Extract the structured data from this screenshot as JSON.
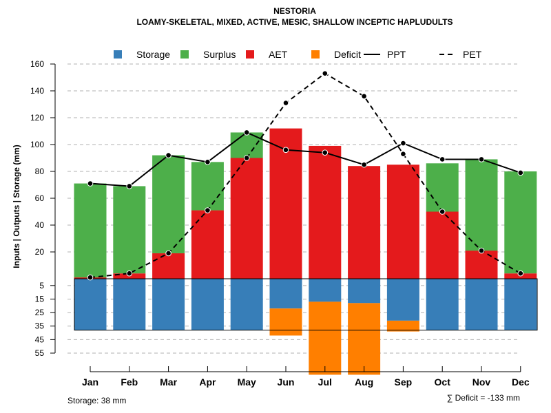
{
  "chart_data": {
    "type": "bar",
    "title": "NESTORIA",
    "subtitle": "LOAMY-SKELETAL, MIXED, ACTIVE, MESIC, SHALLOW INCEPTIC HAPLUDULTS",
    "ylabel": "Inputs | Outputs | Storage    (mm)",
    "categories": [
      "Jan",
      "Feb",
      "Mar",
      "Apr",
      "May",
      "Jun",
      "Jul",
      "Aug",
      "Sep",
      "Oct",
      "Nov",
      "Dec"
    ],
    "upper_yticks": [
      20,
      40,
      60,
      80,
      100,
      120,
      140,
      160
    ],
    "lower_yticks": [
      5,
      15,
      25,
      35,
      45,
      55
    ],
    "ylim_upper": [
      0,
      160
    ],
    "ylim_lower": [
      0,
      55
    ],
    "series": [
      {
        "name": "Storage",
        "color": "#377EB8",
        "values": [
          38,
          38,
          38,
          38,
          38,
          22,
          17,
          18,
          31,
          38,
          38,
          38
        ]
      },
      {
        "name": "Surplus",
        "color": "#4DAF4A",
        "values": [
          70,
          65,
          73,
          36,
          19,
          0,
          0,
          0,
          0,
          36,
          68,
          76
        ]
      },
      {
        "name": "AET",
        "color": "#E41A1C",
        "values": [
          1,
          4,
          19,
          51,
          90,
          112,
          99,
          84,
          85,
          50,
          21,
          4
        ]
      },
      {
        "name": "Deficit",
        "color": "#FF7F00",
        "values": [
          0,
          0,
          0,
          0,
          0,
          20,
          54,
          53,
          8,
          0,
          0,
          0
        ]
      },
      {
        "name": "PPT",
        "color": "#000000",
        "line": "solid",
        "values": [
          71,
          69,
          92,
          87,
          109,
          96,
          94,
          85,
          101,
          89,
          89,
          79
        ]
      },
      {
        "name": "PET",
        "color": "#000000",
        "line": "dashed",
        "values": [
          1,
          4,
          19,
          51,
          90,
          131,
          153,
          136,
          93,
          50,
          21,
          4
        ]
      }
    ],
    "legend_order": [
      "Storage",
      "Surplus",
      "AET",
      "Deficit",
      "PPT",
      "PET"
    ],
    "legend_position": "top-center",
    "grid": true
  },
  "notes": {
    "storage": "Storage: 38 mm",
    "deficit": "∑ Deficit = -133 mm"
  }
}
